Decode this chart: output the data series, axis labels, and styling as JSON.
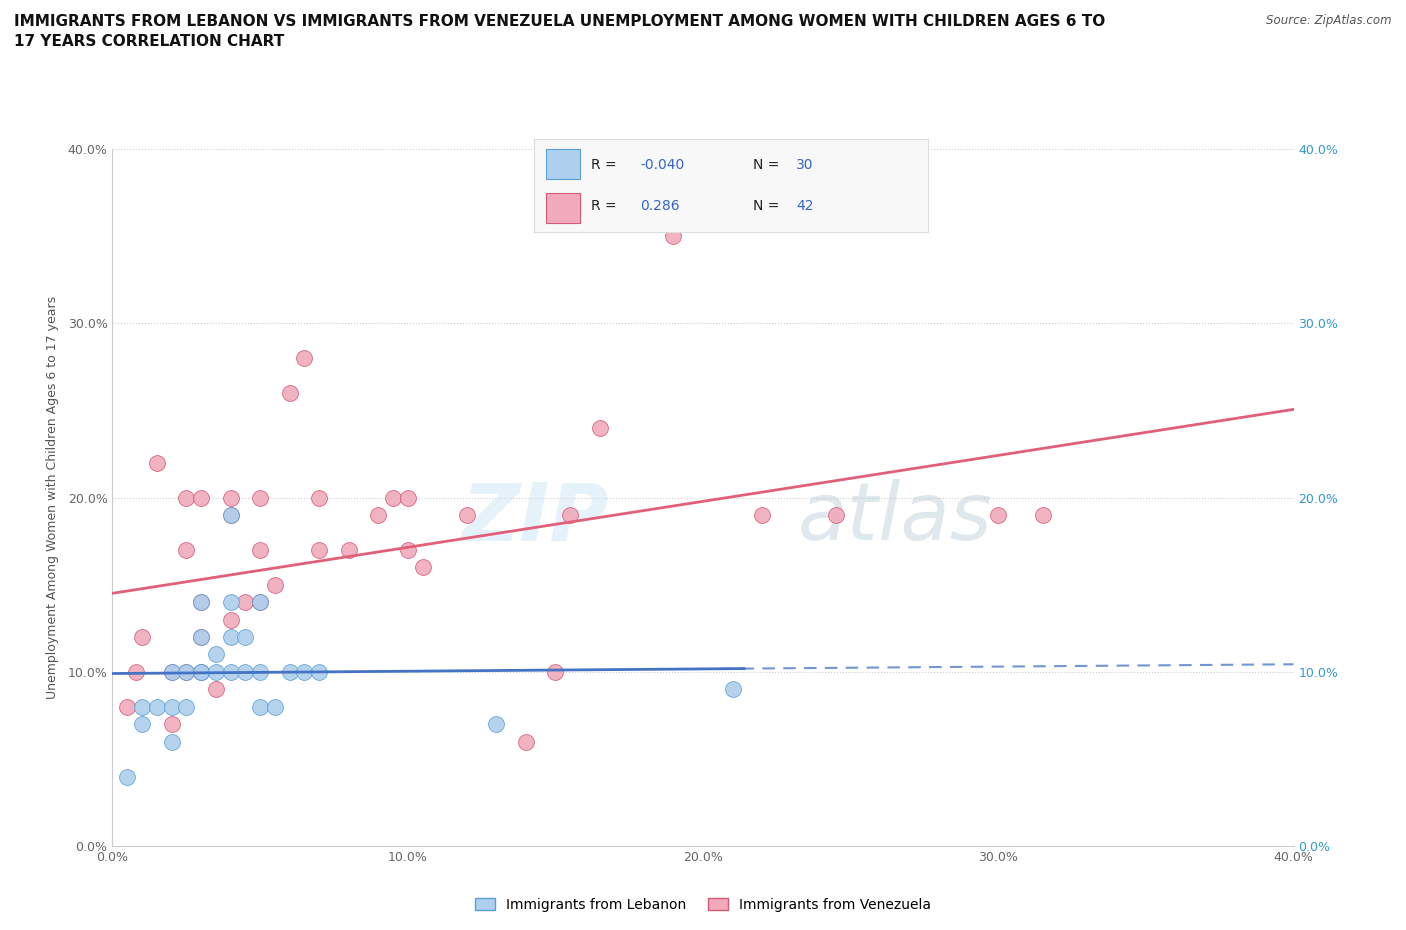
{
  "title": "IMMIGRANTS FROM LEBANON VS IMMIGRANTS FROM VENEZUELA UNEMPLOYMENT AMONG WOMEN WITH CHILDREN AGES 6 TO\n17 YEARS CORRELATION CHART",
  "source_text": "Source: ZipAtlas.com",
  "ylabel": "Unemployment Among Women with Children Ages 6 to 17 years",
  "xmin": 0.0,
  "xmax": 0.4,
  "ymin": 0.0,
  "ymax": 0.4,
  "lebanon": {
    "label": "Immigrants from Lebanon",
    "color": "#7ab8e8",
    "face_color": "#aecfed",
    "edge_color": "#5a9fd4",
    "R": -0.04,
    "N": 30,
    "x": [
      0.005,
      0.01,
      0.01,
      0.015,
      0.02,
      0.02,
      0.02,
      0.025,
      0.025,
      0.03,
      0.03,
      0.03,
      0.03,
      0.035,
      0.035,
      0.04,
      0.04,
      0.04,
      0.04,
      0.045,
      0.045,
      0.05,
      0.05,
      0.05,
      0.055,
      0.06,
      0.065,
      0.07,
      0.13,
      0.21
    ],
    "y": [
      0.04,
      0.07,
      0.08,
      0.08,
      0.06,
      0.08,
      0.1,
      0.08,
      0.1,
      0.1,
      0.1,
      0.12,
      0.14,
      0.1,
      0.11,
      0.1,
      0.12,
      0.14,
      0.19,
      0.1,
      0.12,
      0.08,
      0.1,
      0.14,
      0.08,
      0.1,
      0.1,
      0.1,
      0.07,
      0.09
    ]
  },
  "venezuela": {
    "label": "Immigrants from Venezuela",
    "color": "#e8829a",
    "face_color": "#f0aabb",
    "edge_color": "#d45a78",
    "R": 0.286,
    "N": 42,
    "x": [
      0.005,
      0.008,
      0.01,
      0.015,
      0.02,
      0.02,
      0.025,
      0.025,
      0.025,
      0.03,
      0.03,
      0.03,
      0.03,
      0.035,
      0.04,
      0.04,
      0.04,
      0.045,
      0.05,
      0.05,
      0.05,
      0.055,
      0.06,
      0.065,
      0.07,
      0.07,
      0.08,
      0.09,
      0.095,
      0.1,
      0.1,
      0.105,
      0.12,
      0.14,
      0.15,
      0.155,
      0.165,
      0.19,
      0.22,
      0.245,
      0.3,
      0.315
    ],
    "y": [
      0.08,
      0.1,
      0.12,
      0.22,
      0.07,
      0.1,
      0.1,
      0.17,
      0.2,
      0.1,
      0.12,
      0.14,
      0.2,
      0.09,
      0.13,
      0.19,
      0.2,
      0.14,
      0.14,
      0.17,
      0.2,
      0.15,
      0.26,
      0.28,
      0.17,
      0.2,
      0.17,
      0.19,
      0.2,
      0.17,
      0.2,
      0.16,
      0.19,
      0.06,
      0.1,
      0.19,
      0.24,
      0.35,
      0.19,
      0.19,
      0.19,
      0.19
    ]
  },
  "yticks": [
    0.0,
    0.1,
    0.2,
    0.3,
    0.4
  ],
  "xticks": [
    0.0,
    0.1,
    0.2,
    0.3,
    0.4
  ],
  "grid_color": "#cccccc",
  "background_color": "#ffffff",
  "watermark_zip": "ZIP",
  "watermark_atlas": "atlas",
  "title_fontsize": 11,
  "legend_R_color": "#3366cc",
  "right_axis_color": "#3399cc"
}
